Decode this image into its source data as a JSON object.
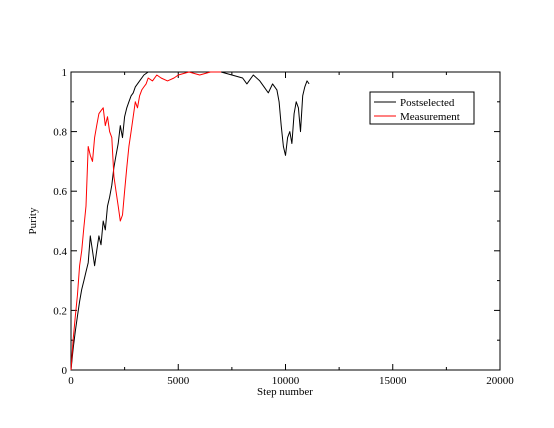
{
  "chart_data": {
    "type": "line",
    "xlabel": "Step number",
    "ylabel": "Purity",
    "xlim": [
      0,
      20000
    ],
    "ylim": [
      0,
      1
    ],
    "x_ticks": [
      0,
      5000,
      10000,
      15000,
      20000
    ],
    "y_ticks": [
      0,
      0.2,
      0.4,
      0.6,
      0.8,
      1
    ],
    "x_tick_labels": [
      "0",
      "5000",
      "10000",
      "15000",
      "20000"
    ],
    "y_tick_labels": [
      "0",
      "0.2",
      "0.4",
      "0.6",
      "0.8",
      "1"
    ],
    "grid": false,
    "legend_position": "top-right",
    "series": [
      {
        "name": "Postselected",
        "color": "#000000",
        "x": [
          0,
          100,
          200,
          300,
          400,
          500,
          600,
          700,
          800,
          900,
          1000,
          1100,
          1200,
          1300,
          1400,
          1500,
          1600,
          1700,
          1800,
          1900,
          2000,
          2100,
          2200,
          2300,
          2400,
          2500,
          2600,
          2700,
          2800,
          2900,
          3000,
          3200,
          3400,
          3600,
          3800,
          4000,
          4500,
          5000,
          5500,
          6000,
          6500,
          7000,
          7500,
          8000,
          8200,
          8500,
          8800,
          9000,
          9200,
          9400,
          9600,
          9700,
          9800,
          9900,
          10000,
          10100,
          10200,
          10300,
          10400,
          10500,
          10600,
          10700,
          10800,
          10900,
          11000,
          11100
        ],
        "y": [
          0.0,
          0.07,
          0.13,
          0.18,
          0.23,
          0.27,
          0.3,
          0.33,
          0.36,
          0.45,
          0.4,
          0.35,
          0.4,
          0.45,
          0.42,
          0.5,
          0.47,
          0.55,
          0.58,
          0.62,
          0.68,
          0.72,
          0.76,
          0.82,
          0.78,
          0.85,
          0.88,
          0.9,
          0.92,
          0.93,
          0.95,
          0.97,
          0.99,
          1.0,
          1.0,
          1.0,
          1.0,
          1.0,
          1.0,
          1.0,
          1.0,
          1.0,
          0.99,
          0.98,
          0.96,
          0.99,
          0.97,
          0.95,
          0.93,
          0.96,
          0.94,
          0.9,
          0.82,
          0.75,
          0.72,
          0.78,
          0.8,
          0.76,
          0.86,
          0.9,
          0.88,
          0.8,
          0.92,
          0.95,
          0.97,
          0.96
        ]
      },
      {
        "name": "Measurement",
        "color": "#ff0000",
        "x": [
          0,
          100,
          200,
          300,
          400,
          500,
          600,
          700,
          800,
          900,
          1000,
          1100,
          1200,
          1300,
          1400,
          1500,
          1600,
          1700,
          1800,
          1900,
          2000,
          2100,
          2200,
          2300,
          2400,
          2500,
          2600,
          2700,
          2800,
          2900,
          3000,
          3100,
          3200,
          3300,
          3400,
          3500,
          3600,
          3800,
          4000,
          4200,
          4500,
          4800,
          5000,
          5500,
          6000,
          6500,
          7000
        ],
        "y": [
          0.0,
          0.1,
          0.18,
          0.25,
          0.35,
          0.4,
          0.48,
          0.55,
          0.75,
          0.72,
          0.7,
          0.78,
          0.82,
          0.86,
          0.87,
          0.88,
          0.82,
          0.85,
          0.8,
          0.78,
          0.65,
          0.6,
          0.55,
          0.5,
          0.52,
          0.6,
          0.68,
          0.75,
          0.8,
          0.85,
          0.9,
          0.88,
          0.92,
          0.94,
          0.95,
          0.96,
          0.98,
          0.97,
          0.99,
          0.98,
          0.97,
          0.98,
          0.99,
          1.0,
          0.99,
          1.0,
          1.0
        ]
      }
    ]
  }
}
